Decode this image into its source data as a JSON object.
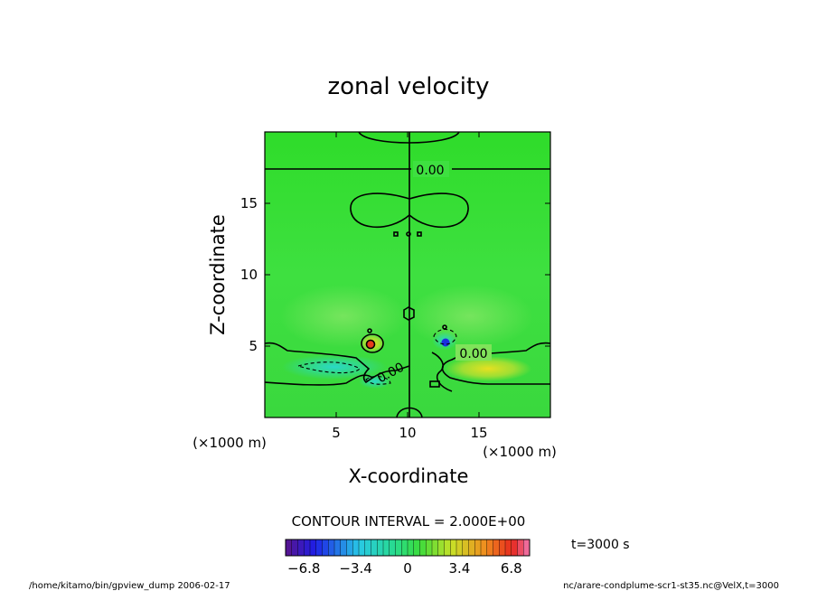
{
  "chart_data": {
    "type": "heatmap",
    "title": "zonal velocity",
    "xlabel": "X-coordinate",
    "ylabel": "Z-coordinate",
    "xlim": [
      0,
      20
    ],
    "ylim": [
      0,
      20
    ],
    "x_ticks": [
      "5",
      "10",
      "15"
    ],
    "y_ticks": [
      "5",
      "10",
      "15"
    ],
    "x_units": "(×1000 m)",
    "y_units": "(×1000 m)",
    "contour_labels": [
      "0.00",
      "0.00",
      "0.00"
    ],
    "contour_interval_text": "CONTOUR INTERVAL = 2.000E+00",
    "time_text": "t=3000 s",
    "colorbar": {
      "ticks": [
        "−6.8",
        "−3.4",
        "0",
        "3.4",
        "6.8"
      ],
      "range": [
        -8,
        8
      ]
    },
    "footer_left": "/home/kitamo/bin/gpview_dump  2006-02-17",
    "footer_right": "nc/arare-condplume-scr1-st35.nc@VelX,t=3000",
    "colors": {
      "background_field": "#33dd33",
      "positive_max": "#e83a1c",
      "negative_max": "#1b2fe0"
    }
  }
}
